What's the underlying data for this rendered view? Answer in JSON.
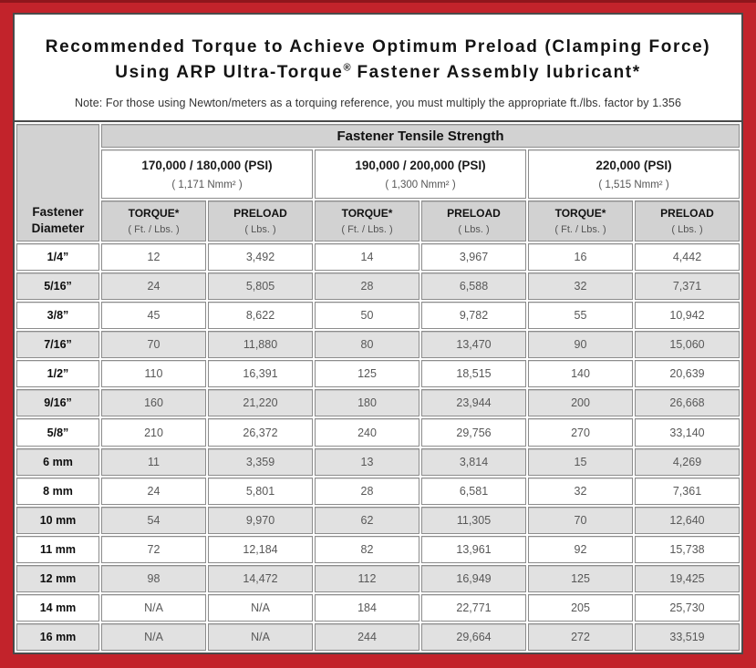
{
  "colors": {
    "frame_red": "#c2232b",
    "frame_red_dark": "#8e161c",
    "panel_border": "#4a4a4a",
    "header_gray": "#d2d2d2",
    "row_shaded_gray": "#e1e1e1",
    "cell_border_gray": "#8c8c8c",
    "value_text_gray": "#585858"
  },
  "title": {
    "line1": "Recommended Torque to Achieve Optimum Preload (Clamping Force)",
    "line2_pre": "Using ARP Ultra-Torque",
    "line2_sup": "®",
    "line2_post": " Fastener Assembly lubricant*",
    "note": "Note: For those using Newton/meters as a torquing reference, you must multiply the appropriate ft./lbs. factor by 1.356"
  },
  "table": {
    "tensile_header": "Fastener Tensile Strength",
    "diameter_header": "Fastener Diameter",
    "groups": [
      {
        "psi": "170,000 / 180,000 (PSI)",
        "nmm": "( 1,171 Nmm² )"
      },
      {
        "psi": "190,000 / 200,000 (PSI)",
        "nmm": "( 1,300 Nmm² )"
      },
      {
        "psi": "220,000 (PSI)",
        "nmm": "( 1,515 Nmm² )"
      }
    ],
    "col_headers": {
      "torque": "TORQUE*",
      "torque_sub": "( Ft. / Lbs. )",
      "preload": "PRELOAD",
      "preload_sub": "( Lbs. )"
    },
    "rows": [
      {
        "diameter": "1/4”",
        "values": [
          "12",
          "3,492",
          "14",
          "3,967",
          "16",
          "4,442"
        ]
      },
      {
        "diameter": "5/16”",
        "values": [
          "24",
          "5,805",
          "28",
          "6,588",
          "32",
          "7,371"
        ]
      },
      {
        "diameter": "3/8”",
        "values": [
          "45",
          "8,622",
          "50",
          "9,782",
          "55",
          "10,942"
        ]
      },
      {
        "diameter": "7/16”",
        "values": [
          "70",
          "11,880",
          "80",
          "13,470",
          "90",
          "15,060"
        ]
      },
      {
        "diameter": "1/2”",
        "values": [
          "110",
          "16,391",
          "125",
          "18,515",
          "140",
          "20,639"
        ]
      },
      {
        "diameter": "9/16”",
        "values": [
          "160",
          "21,220",
          "180",
          "23,944",
          "200",
          "26,668"
        ]
      },
      {
        "diameter": "5/8”",
        "values": [
          "210",
          "26,372",
          "240",
          "29,756",
          "270",
          "33,140"
        ]
      },
      {
        "diameter": "6 mm",
        "values": [
          "11",
          "3,359",
          "13",
          "3,814",
          "15",
          "4,269"
        ]
      },
      {
        "diameter": "8 mm",
        "values": [
          "24",
          "5,801",
          "28",
          "6,581",
          "32",
          "7,361"
        ]
      },
      {
        "diameter": "10 mm",
        "values": [
          "54",
          "9,970",
          "62",
          "11,305",
          "70",
          "12,640"
        ]
      },
      {
        "diameter": "11 mm",
        "values": [
          "72",
          "12,184",
          "82",
          "13,961",
          "92",
          "15,738"
        ]
      },
      {
        "diameter": "12 mm",
        "values": [
          "98",
          "14,472",
          "112",
          "16,949",
          "125",
          "19,425"
        ]
      },
      {
        "diameter": "14 mm",
        "values": [
          "N/A",
          "N/A",
          "184",
          "22,771",
          "205",
          "25,730"
        ]
      },
      {
        "diameter": "16 mm",
        "values": [
          "N/A",
          "N/A",
          "244",
          "29,664",
          "272",
          "33,519"
        ]
      }
    ]
  }
}
